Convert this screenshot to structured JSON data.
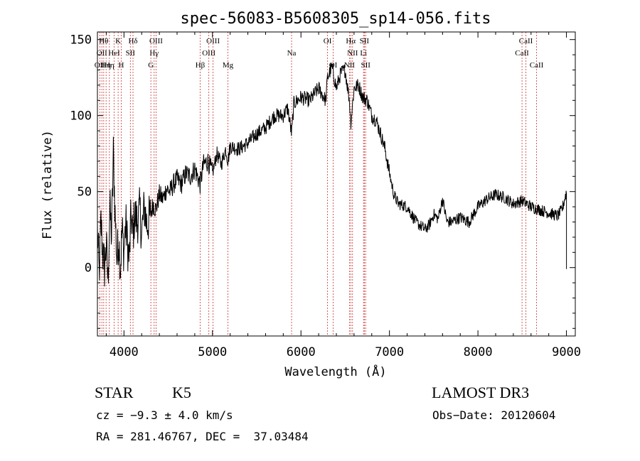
{
  "chart_data": {
    "type": "line",
    "title": "spec-56083-B5608305_sp14-056.fits",
    "xlabel": "Wavelength (Å)",
    "ylabel": "Flux (relative)",
    "xlim": [
      3700,
      9100
    ],
    "ylim": [
      -45,
      155
    ],
    "xticks": [
      {
        "value": 4000,
        "label": "4000"
      },
      {
        "value": 5000,
        "label": "5000"
      },
      {
        "value": 6000,
        "label": "6000"
      },
      {
        "value": 7000,
        "label": "7000"
      },
      {
        "value": 8000,
        "label": "8000"
      },
      {
        "value": 9000,
        "label": "9000"
      }
    ],
    "yticks": [
      {
        "value": 0,
        "label": "0"
      },
      {
        "value": 50,
        "label": "50"
      },
      {
        "value": 100,
        "label": "100"
      },
      {
        "value": 150,
        "label": "150"
      }
    ],
    "line_color": "#000000",
    "marker_color": "#cc3333",
    "spectral_lines": [
      {
        "wavelength": 3727,
        "label": "OII",
        "row": 2
      },
      {
        "wavelength": 3750,
        "label": "OII",
        "row": 1
      },
      {
        "wavelength": 3771,
        "label": "Hθ",
        "row": 0
      },
      {
        "wavelength": 3798,
        "label": "Hη",
        "row": 2
      },
      {
        "wavelength": 3835,
        "label": "Hη",
        "row": 2
      },
      {
        "wavelength": 3889,
        "label": "HeI",
        "row": 1
      },
      {
        "wavelength": 3934,
        "label": "K",
        "row": 0
      },
      {
        "wavelength": 3969,
        "label": "H",
        "row": 2
      },
      {
        "wavelength": 4072,
        "label": "SII",
        "row": 1
      },
      {
        "wavelength": 4102,
        "label": "Hδ",
        "row": 0
      },
      {
        "wavelength": 4304,
        "label": "G",
        "row": 2
      },
      {
        "wavelength": 4341,
        "label": "Hγ",
        "row": 1
      },
      {
        "wavelength": 4363,
        "label": "OIII",
        "row": 0
      },
      {
        "wavelength": 4861,
        "label": "Hβ",
        "row": 2
      },
      {
        "wavelength": 4959,
        "label": "OIII",
        "row": 1
      },
      {
        "wavelength": 5007,
        "label": "OIII",
        "row": 0
      },
      {
        "wavelength": 5175,
        "label": "Mg",
        "row": 2
      },
      {
        "wavelength": 5894,
        "label": "Na",
        "row": 1
      },
      {
        "wavelength": 6300,
        "label": "OI",
        "row": 0
      },
      {
        "wavelength": 6364,
        "label": "OI",
        "row": 2
      },
      {
        "wavelength": 6548,
        "label": "NII",
        "row": 2
      },
      {
        "wavelength": 6563,
        "label": "Hα",
        "row": 0
      },
      {
        "wavelength": 6583,
        "label": "NII",
        "row": 1
      },
      {
        "wavelength": 6707,
        "label": "Li",
        "row": 1
      },
      {
        "wavelength": 6716,
        "label": "SII",
        "row": 0
      },
      {
        "wavelength": 6731,
        "label": "SII",
        "row": 2
      },
      {
        "wavelength": 8498,
        "label": "CaII",
        "row": 1
      },
      {
        "wavelength": 8542,
        "label": "CaII",
        "row": 0
      },
      {
        "wavelength": 8662,
        "label": "CaII",
        "row": 2
      }
    ],
    "spectrum_anchors": [
      [
        3700,
        25
      ],
      [
        3720,
        -5
      ],
      [
        3740,
        30
      ],
      [
        3760,
        10
      ],
      [
        3780,
        0
      ],
      [
        3800,
        15
      ],
      [
        3820,
        -10
      ],
      [
        3840,
        40
      ],
      [
        3860,
        20
      ],
      [
        3880,
        75
      ],
      [
        3900,
        35
      ],
      [
        3920,
        5
      ],
      [
        3940,
        20
      ],
      [
        3960,
        0
      ],
      [
        3980,
        25
      ],
      [
        4000,
        10
      ],
      [
        4020,
        30
      ],
      [
        4040,
        15
      ],
      [
        4060,
        5
      ],
      [
        4080,
        35
      ],
      [
        4100,
        20
      ],
      [
        4120,
        35
      ],
      [
        4150,
        30
      ],
      [
        4180,
        38
      ],
      [
        4200,
        22
      ],
      [
        4230,
        40
      ],
      [
        4260,
        28
      ],
      [
        4300,
        35
      ],
      [
        4330,
        42
      ],
      [
        4360,
        38
      ],
      [
        4400,
        48
      ],
      [
        4440,
        45
      ],
      [
        4480,
        52
      ],
      [
        4520,
        50
      ],
      [
        4560,
        55
      ],
      [
        4600,
        58
      ],
      [
        4650,
        55
      ],
      [
        4700,
        62
      ],
      [
        4750,
        60
      ],
      [
        4800,
        65
      ],
      [
        4860,
        55
      ],
      [
        4900,
        68
      ],
      [
        4950,
        70
      ],
      [
        5000,
        62
      ],
      [
        5050,
        75
      ],
      [
        5100,
        68
      ],
      [
        5150,
        78
      ],
      [
        5175,
        70
      ],
      [
        5200,
        80
      ],
      [
        5300,
        78
      ],
      [
        5400,
        82
      ],
      [
        5500,
        88
      ],
      [
        5600,
        92
      ],
      [
        5700,
        100
      ],
      [
        5800,
        100
      ],
      [
        5850,
        105
      ],
      [
        5894,
        88
      ],
      [
        5920,
        108
      ],
      [
        6000,
        112
      ],
      [
        6100,
        110
      ],
      [
        6200,
        118
      ],
      [
        6280,
        110
      ],
      [
        6300,
        125
      ],
      [
        6350,
        132
      ],
      [
        6400,
        118
      ],
      [
        6450,
        128
      ],
      [
        6500,
        130
      ],
      [
        6548,
        110
      ],
      [
        6563,
        95
      ],
      [
        6600,
        118
      ],
      [
        6650,
        120
      ],
      [
        6700,
        112
      ],
      [
        6750,
        110
      ],
      [
        6800,
        100
      ],
      [
        6850,
        97
      ],
      [
        6900,
        88
      ],
      [
        6950,
        78
      ],
      [
        7000,
        62
      ],
      [
        7050,
        48
      ],
      [
        7100,
        42
      ],
      [
        7200,
        40
      ],
      [
        7300,
        30
      ],
      [
        7400,
        25
      ],
      [
        7450,
        28
      ],
      [
        7500,
        35
      ],
      [
        7550,
        32
      ],
      [
        7600,
        45
      ],
      [
        7650,
        30
      ],
      [
        7700,
        30
      ],
      [
        7800,
        33
      ],
      [
        7900,
        30
      ],
      [
        8000,
        40
      ],
      [
        8100,
        45
      ],
      [
        8200,
        48
      ],
      [
        8300,
        46
      ],
      [
        8400,
        42
      ],
      [
        8500,
        44
      ],
      [
        8600,
        40
      ],
      [
        8700,
        38
      ],
      [
        8800,
        36
      ],
      [
        8900,
        34
      ],
      [
        8950,
        38
      ],
      [
        9000,
        50
      ]
    ]
  },
  "info": {
    "object_type": "STAR",
    "subclass": "K5",
    "survey": "LAMOST DR3",
    "cz": "cz = −9.3 ± 4.0 km/s",
    "obs_date": "Obs−Date: 20120604",
    "coords": "RA = 281.46767, DEC =  37.03484"
  }
}
